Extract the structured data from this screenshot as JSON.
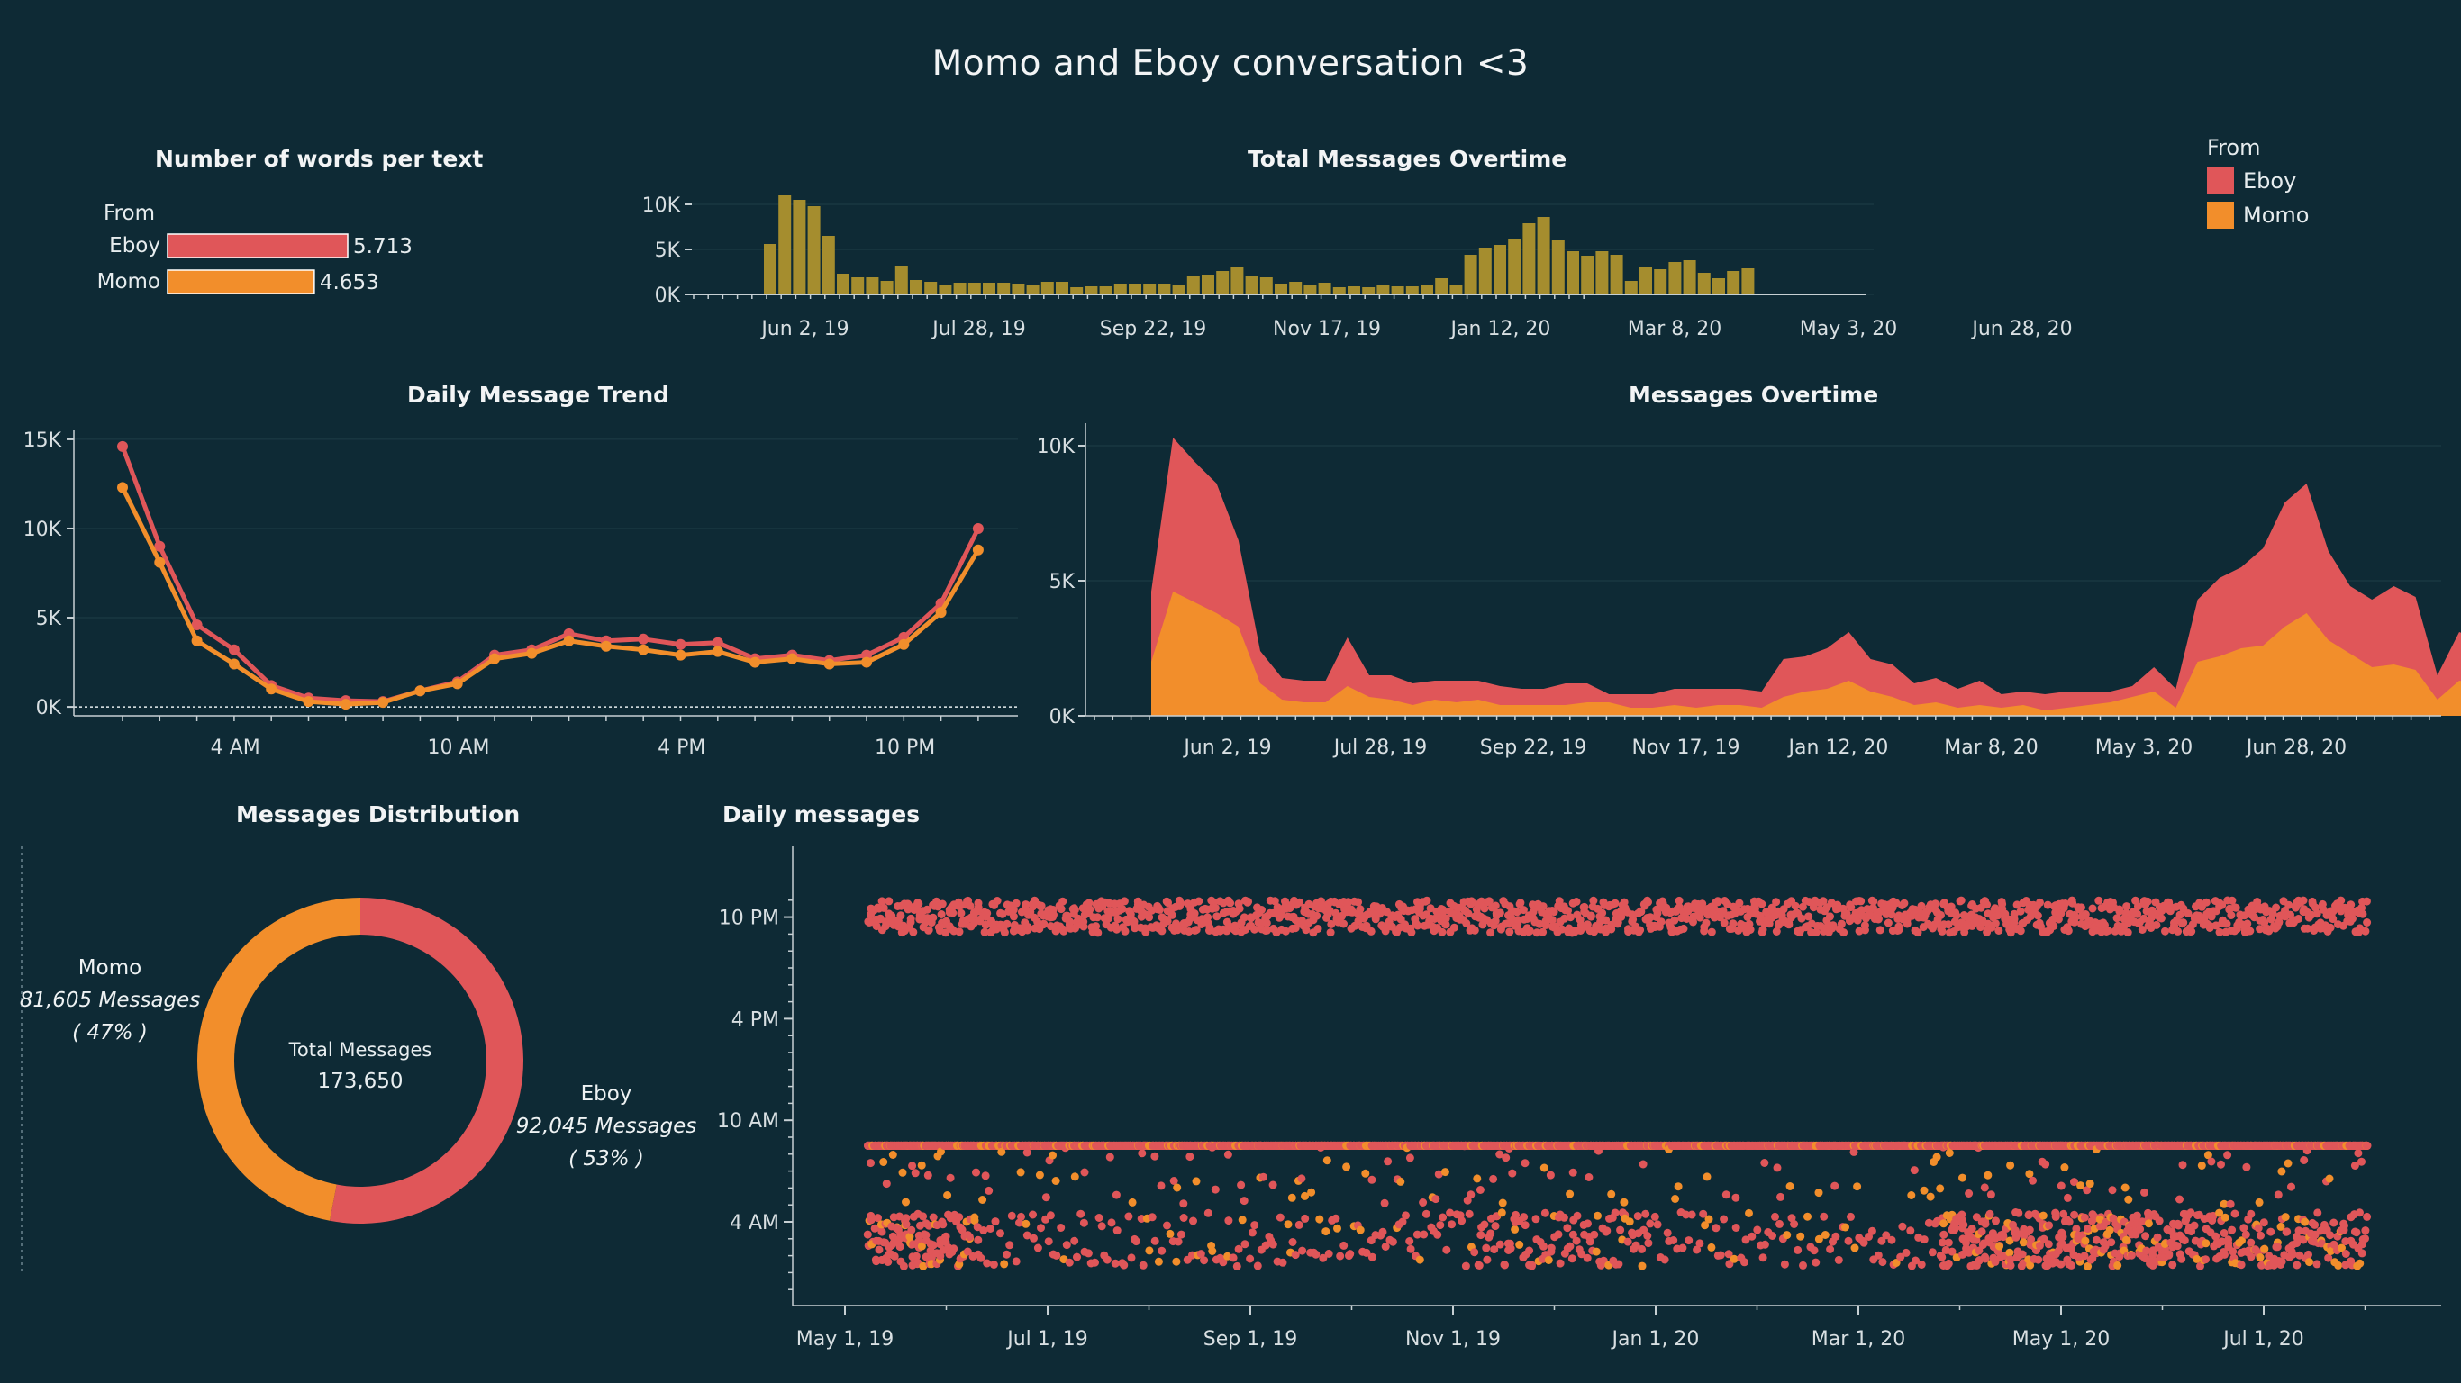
{
  "title": "Momo and Eboy conversation <3",
  "colors": {
    "background": "#0e2a35",
    "eboy": "#e05659",
    "momo": "#f28e2b",
    "total_bar": "#a58d2e",
    "axis": "#c7d0d4",
    "grid": "#1f3d48"
  },
  "legend": {
    "title": "From",
    "items": [
      "Eboy",
      "Momo"
    ]
  },
  "chart_data": [
    {
      "id": "words",
      "type": "bar",
      "title": "Number of words per text",
      "legend_title": "From",
      "categories": [
        "Eboy",
        "Momo"
      ],
      "values": [
        5.713,
        4.653
      ],
      "value_labels": [
        "5.713",
        "4.653"
      ],
      "xlim": [
        0,
        6
      ]
    },
    {
      "id": "total",
      "type": "bar",
      "title": "Total Messages Overtime",
      "x_start": "2019-04-28",
      "x_step": "week",
      "ylim": [
        0,
        11000
      ],
      "yticks": [
        0,
        5000,
        10000
      ],
      "ytick_labels": [
        "0K",
        "5K",
        "10K"
      ],
      "xtick_labels": [
        "Jun 2, 19",
        "Jul 28, 19",
        "Sep 22, 19",
        "Nov 17, 19",
        "Jan 12, 20",
        "Mar 8, 20",
        "May 3, 20",
        "Jun 28, 20"
      ],
      "values": [
        5600,
        11000,
        10500,
        9800,
        6500,
        2300,
        1900,
        1900,
        1500,
        3200,
        1600,
        1400,
        1100,
        1300,
        1300,
        1300,
        1300,
        1200,
        1100,
        1400,
        1400,
        800,
        900,
        900,
        1200,
        1200,
        1200,
        1200,
        1000,
        2100,
        2200,
        2600,
        3100,
        2100,
        1900,
        1200,
        1400,
        1000,
        1300,
        800,
        900,
        800,
        1000,
        900,
        900,
        1100,
        1800,
        1000,
        4400,
        5200,
        5500,
        6200,
        7900,
        8600,
        6100,
        4800,
        4300,
        4800,
        4400,
        1500,
        3100,
        2800,
        3600,
        3800,
        2400,
        1800,
        2600,
        2900
      ]
    },
    {
      "id": "daily_trend",
      "type": "line",
      "title": "Daily Message Trend",
      "x": [
        0,
        1,
        2,
        3,
        4,
        5,
        6,
        7,
        8,
        9,
        10,
        11,
        12,
        13,
        14,
        15,
        16,
        17,
        18,
        19,
        20,
        21,
        22,
        23
      ],
      "xtick_labels": [
        "4 AM",
        "10 AM",
        "4 PM",
        "10 PM"
      ],
      "xtick_hours": [
        4,
        10,
        16,
        22
      ],
      "ylim": [
        -500,
        15500
      ],
      "yticks": [
        0,
        5000,
        10000,
        15000
      ],
      "ytick_labels": [
        "0K",
        "5K",
        "10K",
        "15K"
      ],
      "series": [
        {
          "name": "Eboy",
          "values": [
            14600,
            9000,
            4600,
            3200,
            1200,
            500,
            350,
            300,
            900,
            1400,
            2900,
            3200,
            4100,
            3700,
            3800,
            3500,
            3600,
            2700,
            2900,
            2600,
            2900,
            3900,
            5800,
            10000
          ]
        },
        {
          "name": "Momo",
          "values": [
            12300,
            8100,
            3700,
            2400,
            1000,
            300,
            150,
            250,
            900,
            1300,
            2700,
            3000,
            3700,
            3400,
            3200,
            2900,
            3100,
            2500,
            2700,
            2400,
            2500,
            3500,
            5300,
            8800
          ]
        }
      ]
    },
    {
      "id": "overtime",
      "type": "area",
      "title": "Messages Overtime",
      "ylim": [
        0,
        10500
      ],
      "yticks": [
        0,
        5000,
        10000
      ],
      "ytick_labels": [
        "0K",
        "5K",
        "10K"
      ],
      "xtick_labels": [
        "Jun 2, 19",
        "Jul 28, 19",
        "Sep 22, 19",
        "Nov 17, 19",
        "Jan 12, 20",
        "Mar 8, 20",
        "May 3, 20",
        "Jun 28, 20"
      ],
      "series": [
        {
          "name": "Momo",
          "values": [
            2000,
            4600,
            4200,
            3800,
            3300,
            1200,
            600,
            500,
            500,
            1100,
            700,
            600,
            400,
            600,
            500,
            600,
            400,
            400,
            400,
            400,
            500,
            500,
            300,
            300,
            400,
            300,
            400,
            400,
            300,
            700,
            900,
            1000,
            1300,
            900,
            700,
            400,
            500,
            300,
            400,
            300,
            400,
            200,
            300,
            400,
            500,
            700,
            900,
            300,
            2000,
            2200,
            2500,
            2600,
            3300,
            3800,
            2800,
            2300,
            1800,
            1900,
            1700,
            600,
            1300,
            1200,
            1500,
            1600,
            1100,
            700,
            1200,
            1300
          ]
        },
        {
          "name": "Eboy",
          "values": [
            2600,
            5700,
            5200,
            4800,
            3200,
            1200,
            800,
            800,
            800,
            1800,
            800,
            900,
            800,
            700,
            800,
            700,
            700,
            600,
            600,
            800,
            700,
            300,
            500,
            500,
            600,
            700,
            600,
            600,
            600,
            1400,
            1300,
            1500,
            1800,
            1200,
            1200,
            800,
            900,
            700,
            900,
            500,
            500,
            600,
            600,
            500,
            400,
            400,
            900,
            700,
            2300,
            2900,
            3000,
            3600,
            4600,
            4800,
            3300,
            2500,
            2500,
            2900,
            2700,
            900,
            1800,
            1600,
            2100,
            2200,
            1300,
            1100,
            1400,
            1500
          ]
        }
      ]
    },
    {
      "id": "distribution",
      "type": "pie",
      "title": "Messages Distribution",
      "center_label": "Total Messages",
      "center_value": "173,650",
      "series": [
        {
          "name": "Eboy",
          "value": 92045,
          "messages_label": "92,045 Messages",
          "pct_label": "( 53% )"
        },
        {
          "name": "Momo",
          "value": 81605,
          "messages_label": "81,605 Messages",
          "pct_label": "( 47% )"
        }
      ]
    },
    {
      "id": "daily_messages",
      "type": "scatter",
      "title": "Daily messages",
      "x_range": [
        "2019-05-01",
        "2020-08-31"
      ],
      "xtick_labels": [
        "May 1, 19",
        "Jul 1, 19",
        "Sep 1, 19",
        "Nov 1, 19",
        "Jan 1, 20",
        "Mar 1, 20",
        "May 1, 20",
        "Jul 1, 20"
      ],
      "ytick_labels": [
        "10 PM",
        "4 PM",
        "10 AM",
        "4 AM"
      ],
      "ytick_hours": [
        22,
        16,
        10,
        4
      ],
      "series": [
        {
          "name": "Eboy"
        },
        {
          "name": "Momo"
        }
      ]
    }
  ]
}
